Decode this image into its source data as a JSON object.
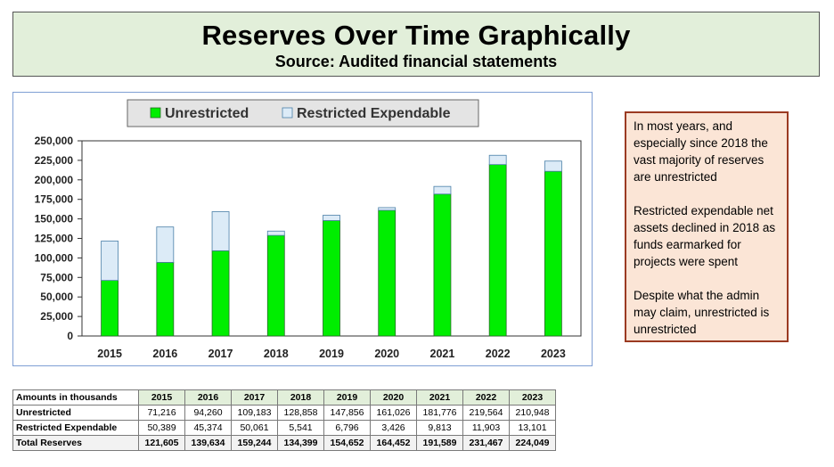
{
  "header": {
    "title": "Reserves Over Time Graphically",
    "subtitle": "Source: Audited financial statements"
  },
  "chart_data": {
    "type": "bar",
    "stacked": true,
    "categories": [
      "2015",
      "2016",
      "2017",
      "2018",
      "2019",
      "2020",
      "2021",
      "2022",
      "2023"
    ],
    "series": [
      {
        "name": "Unrestricted",
        "color": "#00ee00",
        "values": [
          71216,
          94260,
          109183,
          128858,
          147856,
          161026,
          181776,
          219564,
          210948
        ]
      },
      {
        "name": "Restricted Expendable",
        "color": "#dcebf7",
        "values": [
          50389,
          45374,
          50061,
          5541,
          6796,
          3426,
          9813,
          11903,
          13101
        ]
      }
    ],
    "ylim": [
      0,
      250000
    ],
    "yticks": [
      "0",
      "25,000",
      "50,000",
      "75,000",
      "100,000",
      "125,000",
      "150,000",
      "175,000",
      "200,000",
      "225,000",
      "250,000"
    ],
    "legend": "top",
    "grid": false
  },
  "notes": [
    "In most years, and especially since 2018 the vast majority of reserves are unrestricted",
    "Restricted expendable net assets declined in 2018 as funds earmarked for projects were spent",
    "Despite what the admin may claim, unrestricted is unrestricted"
  ],
  "table": {
    "header_label": "Amounts in thousands",
    "years": [
      "2015",
      "2016",
      "2017",
      "2018",
      "2019",
      "2020",
      "2021",
      "2022",
      "2023"
    ],
    "rows": [
      {
        "label": "Unrestricted",
        "values": [
          "71,216",
          "94,260",
          "109,183",
          "128,858",
          "147,856",
          "161,026",
          "181,776",
          "219,564",
          "210,948"
        ]
      },
      {
        "label": "Restricted Expendable",
        "values": [
          "50,389",
          "45,374",
          "50,061",
          "5,541",
          "6,796",
          "3,426",
          "9,813",
          "11,903",
          "13,101"
        ]
      }
    ],
    "total": {
      "label": "Total Reserves",
      "values": [
        "121,605",
        "139,634",
        "159,244",
        "134,399",
        "154,652",
        "164,452",
        "191,589",
        "231,467",
        "224,049"
      ]
    }
  }
}
